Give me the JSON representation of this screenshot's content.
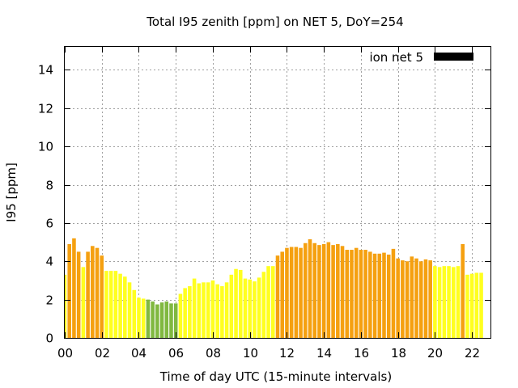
{
  "chart_data": {
    "type": "bar",
    "title": "Total I95 zenith [ppm] on NET 5, DoY=254",
    "xlabel": "Time of day UTC (15-minute intervals)",
    "ylabel": "I95 [ppm]",
    "xlim": [
      0,
      23
    ],
    "ylim": [
      0,
      15.2
    ],
    "x_ticks": [
      {
        "label": "00",
        "value": 0
      },
      {
        "label": "02",
        "value": 2
      },
      {
        "label": "04",
        "value": 4
      },
      {
        "label": "06",
        "value": 6
      },
      {
        "label": "08",
        "value": 8
      },
      {
        "label": "10",
        "value": 10
      },
      {
        "label": "12",
        "value": 12
      },
      {
        "label": "14",
        "value": 14
      },
      {
        "label": "16",
        "value": 16
      },
      {
        "label": "18",
        "value": 18
      },
      {
        "label": "20",
        "value": 20
      },
      {
        "label": "22",
        "value": 22
      }
    ],
    "y_ticks": [
      0,
      2,
      4,
      6,
      8,
      10,
      12,
      14
    ],
    "grid": true,
    "legend": {
      "label": "ion net 5",
      "position": "top-right",
      "color": "#000000"
    },
    "colors": {
      "green": "#80b840",
      "yellow": "#ffff20",
      "orange": "#f5a010"
    },
    "bar_width_hours": 0.2,
    "bars": [
      {
        "t": 0.0,
        "v": 3.3,
        "c": "yellow"
      },
      {
        "t": 0.25,
        "v": 4.9,
        "c": "orange"
      },
      {
        "t": 0.5,
        "v": 5.2,
        "c": "orange"
      },
      {
        "t": 0.75,
        "v": 4.5,
        "c": "orange"
      },
      {
        "t": 1.0,
        "v": 3.7,
        "c": "yellow"
      },
      {
        "t": 1.25,
        "v": 4.5,
        "c": "orange"
      },
      {
        "t": 1.5,
        "v": 4.8,
        "c": "orange"
      },
      {
        "t": 1.75,
        "v": 4.7,
        "c": "orange"
      },
      {
        "t": 2.0,
        "v": 4.3,
        "c": "orange"
      },
      {
        "t": 2.25,
        "v": 3.5,
        "c": "yellow"
      },
      {
        "t": 2.5,
        "v": 3.5,
        "c": "yellow"
      },
      {
        "t": 2.75,
        "v": 3.5,
        "c": "yellow"
      },
      {
        "t": 3.0,
        "v": 3.35,
        "c": "yellow"
      },
      {
        "t": 3.25,
        "v": 3.2,
        "c": "yellow"
      },
      {
        "t": 3.5,
        "v": 2.9,
        "c": "yellow"
      },
      {
        "t": 3.75,
        "v": 2.5,
        "c": "yellow"
      },
      {
        "t": 4.0,
        "v": 2.1,
        "c": "yellow"
      },
      {
        "t": 4.25,
        "v": 2.05,
        "c": "yellow"
      },
      {
        "t": 4.5,
        "v": 2.0,
        "c": "green"
      },
      {
        "t": 4.75,
        "v": 1.9,
        "c": "green"
      },
      {
        "t": 5.0,
        "v": 1.75,
        "c": "green"
      },
      {
        "t": 5.25,
        "v": 1.85,
        "c": "green"
      },
      {
        "t": 5.5,
        "v": 1.9,
        "c": "green"
      },
      {
        "t": 5.75,
        "v": 1.8,
        "c": "green"
      },
      {
        "t": 6.0,
        "v": 1.8,
        "c": "green"
      },
      {
        "t": 6.25,
        "v": 2.3,
        "c": "yellow"
      },
      {
        "t": 6.5,
        "v": 2.6,
        "c": "yellow"
      },
      {
        "t": 6.75,
        "v": 2.7,
        "c": "yellow"
      },
      {
        "t": 7.0,
        "v": 3.1,
        "c": "yellow"
      },
      {
        "t": 7.25,
        "v": 2.85,
        "c": "yellow"
      },
      {
        "t": 7.5,
        "v": 2.9,
        "c": "yellow"
      },
      {
        "t": 7.75,
        "v": 2.9,
        "c": "yellow"
      },
      {
        "t": 8.0,
        "v": 3.0,
        "c": "yellow"
      },
      {
        "t": 8.25,
        "v": 2.8,
        "c": "yellow"
      },
      {
        "t": 8.5,
        "v": 2.7,
        "c": "yellow"
      },
      {
        "t": 8.75,
        "v": 2.9,
        "c": "yellow"
      },
      {
        "t": 9.0,
        "v": 3.3,
        "c": "yellow"
      },
      {
        "t": 9.25,
        "v": 3.6,
        "c": "yellow"
      },
      {
        "t": 9.5,
        "v": 3.55,
        "c": "yellow"
      },
      {
        "t": 9.75,
        "v": 3.1,
        "c": "yellow"
      },
      {
        "t": 10.0,
        "v": 3.05,
        "c": "yellow"
      },
      {
        "t": 10.25,
        "v": 2.95,
        "c": "yellow"
      },
      {
        "t": 10.5,
        "v": 3.15,
        "c": "yellow"
      },
      {
        "t": 10.75,
        "v": 3.45,
        "c": "yellow"
      },
      {
        "t": 11.0,
        "v": 3.75,
        "c": "yellow"
      },
      {
        "t": 11.25,
        "v": 3.75,
        "c": "yellow"
      },
      {
        "t": 11.5,
        "v": 4.3,
        "c": "orange"
      },
      {
        "t": 11.75,
        "v": 4.5,
        "c": "orange"
      },
      {
        "t": 12.0,
        "v": 4.7,
        "c": "orange"
      },
      {
        "t": 12.25,
        "v": 4.75,
        "c": "orange"
      },
      {
        "t": 12.5,
        "v": 4.75,
        "c": "orange"
      },
      {
        "t": 12.75,
        "v": 4.7,
        "c": "orange"
      },
      {
        "t": 13.0,
        "v": 4.95,
        "c": "orange"
      },
      {
        "t": 13.25,
        "v": 5.15,
        "c": "orange"
      },
      {
        "t": 13.5,
        "v": 4.95,
        "c": "orange"
      },
      {
        "t": 13.75,
        "v": 4.85,
        "c": "orange"
      },
      {
        "t": 14.0,
        "v": 4.9,
        "c": "orange"
      },
      {
        "t": 14.25,
        "v": 5.0,
        "c": "orange"
      },
      {
        "t": 14.5,
        "v": 4.85,
        "c": "orange"
      },
      {
        "t": 14.75,
        "v": 4.9,
        "c": "orange"
      },
      {
        "t": 15.0,
        "v": 4.8,
        "c": "orange"
      },
      {
        "t": 15.25,
        "v": 4.6,
        "c": "orange"
      },
      {
        "t": 15.5,
        "v": 4.6,
        "c": "orange"
      },
      {
        "t": 15.75,
        "v": 4.7,
        "c": "orange"
      },
      {
        "t": 16.0,
        "v": 4.6,
        "c": "orange"
      },
      {
        "t": 16.25,
        "v": 4.6,
        "c": "orange"
      },
      {
        "t": 16.5,
        "v": 4.5,
        "c": "orange"
      },
      {
        "t": 16.75,
        "v": 4.4,
        "c": "orange"
      },
      {
        "t": 17.0,
        "v": 4.4,
        "c": "orange"
      },
      {
        "t": 17.25,
        "v": 4.45,
        "c": "orange"
      },
      {
        "t": 17.5,
        "v": 4.35,
        "c": "orange"
      },
      {
        "t": 17.75,
        "v": 4.65,
        "c": "orange"
      },
      {
        "t": 18.0,
        "v": 4.15,
        "c": "orange"
      },
      {
        "t": 18.25,
        "v": 4.05,
        "c": "orange"
      },
      {
        "t": 18.5,
        "v": 4.0,
        "c": "orange"
      },
      {
        "t": 18.75,
        "v": 4.25,
        "c": "orange"
      },
      {
        "t": 19.0,
        "v": 4.15,
        "c": "orange"
      },
      {
        "t": 19.25,
        "v": 4.0,
        "c": "orange"
      },
      {
        "t": 19.5,
        "v": 4.1,
        "c": "orange"
      },
      {
        "t": 19.75,
        "v": 4.05,
        "c": "orange"
      },
      {
        "t": 20.0,
        "v": 3.75,
        "c": "yellow"
      },
      {
        "t": 20.25,
        "v": 3.7,
        "c": "yellow"
      },
      {
        "t": 20.5,
        "v": 3.75,
        "c": "yellow"
      },
      {
        "t": 20.75,
        "v": 3.75,
        "c": "yellow"
      },
      {
        "t": 21.0,
        "v": 3.7,
        "c": "yellow"
      },
      {
        "t": 21.25,
        "v": 3.75,
        "c": "yellow"
      },
      {
        "t": 21.5,
        "v": 4.9,
        "c": "orange"
      },
      {
        "t": 21.75,
        "v": 3.3,
        "c": "yellow"
      },
      {
        "t": 22.0,
        "v": 3.35,
        "c": "yellow"
      },
      {
        "t": 22.25,
        "v": 3.4,
        "c": "yellow"
      },
      {
        "t": 22.5,
        "v": 3.4,
        "c": "yellow"
      }
    ]
  }
}
